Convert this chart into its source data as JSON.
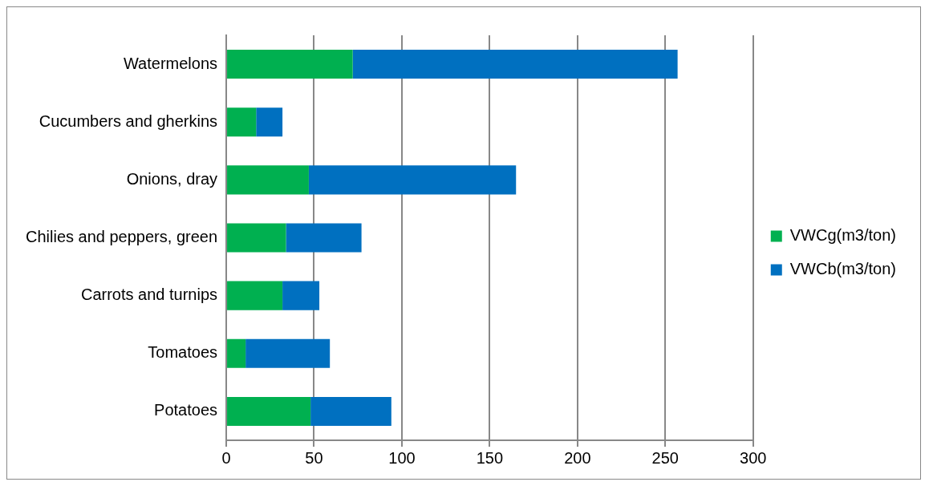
{
  "chart_data": {
    "type": "bar",
    "orientation": "horizontal",
    "stacked": true,
    "categories": [
      "Watermelons",
      "Cucumbers and gherkins",
      "Onions, dray",
      "Chilies and peppers, green",
      "Carrots and turnips",
      "Tomatoes",
      "Potatoes"
    ],
    "series": [
      {
        "name": "VWCg(m3/ton)",
        "color": "#00b050",
        "values": [
          72,
          17,
          47,
          34,
          32,
          11,
          48
        ]
      },
      {
        "name": "VWCb(m3/ton)",
        "color": "#0070c0",
        "values": [
          185,
          15,
          118,
          43,
          21,
          48,
          46
        ]
      }
    ],
    "xlim": [
      0,
      300
    ],
    "xticks": [
      0,
      50,
      100,
      150,
      200,
      250,
      300
    ],
    "grid": "x",
    "legend": "right"
  }
}
